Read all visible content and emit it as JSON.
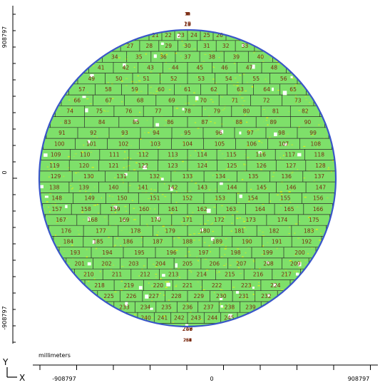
{
  "units_label": "millimeters",
  "axis": {
    "x_letter": "X",
    "y_letter": "Y",
    "x_ticks": [
      "-908797",
      "0",
      "908797"
    ],
    "y_ticks": [
      "908797",
      "0",
      "-908797"
    ]
  },
  "colors": {
    "wafer_fill": "#7ee06a",
    "wafer_edge": "#3a56c8",
    "die_grid": "#2a2a2a",
    "die_label": "#7a2a10",
    "speckle": "#f2f20a",
    "defect": "#ffffff"
  },
  "die_map": {
    "rows": [
      {
        "start": 1,
        "count": 14
      },
      {
        "start": 15,
        "count": 6
      },
      {
        "start": 21,
        "count": 6
      },
      {
        "start": 27,
        "count": 7
      },
      {
        "start": 34,
        "count": 7
      },
      {
        "start": 41,
        "count": 8
      },
      {
        "start": 49,
        "count": 8
      },
      {
        "start": 57,
        "count": 9
      },
      {
        "start": 66,
        "count": 8
      },
      {
        "start": 74,
        "count": 9
      },
      {
        "start": 83,
        "count": 8
      },
      {
        "start": 91,
        "count": 9
      },
      {
        "start": 100,
        "count": 9
      },
      {
        "start": 109,
        "count": 10
      },
      {
        "start": 119,
        "count": 10
      },
      {
        "start": 129,
        "count": 9
      },
      {
        "start": 138,
        "count": 10
      },
      {
        "start": 148,
        "count": 9
      },
      {
        "start": 157,
        "count": 10
      },
      {
        "start": 167,
        "count": 9
      },
      {
        "start": 176,
        "count": 8
      },
      {
        "start": 184,
        "count": 9
      },
      {
        "start": 193,
        "count": 8
      },
      {
        "start": 201,
        "count": 9
      },
      {
        "start": 210,
        "count": 8
      },
      {
        "start": 218,
        "count": 7
      },
      {
        "start": 225,
        "count": 8
      },
      {
        "start": 233,
        "count": 7
      },
      {
        "start": 240,
        "count": 6
      },
      {
        "start": 246,
        "count": 5
      },
      {
        "start": 251,
        "count": 15
      }
    ]
  }
}
